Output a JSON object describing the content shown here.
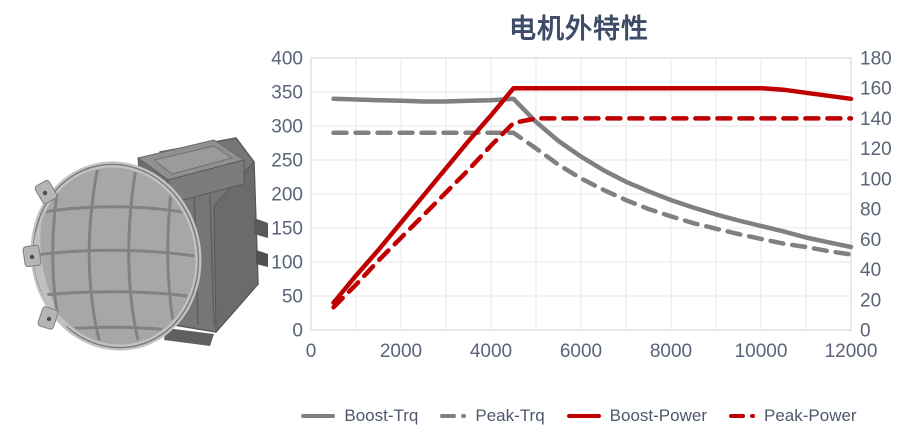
{
  "figure": {
    "alt": "grayscale 3D render of an electric drive motor with inverter housing"
  },
  "theme": {
    "background": "#FFFFFF",
    "accent_red": "#C00000",
    "accent_gray": "#808080",
    "title_color": "#3E4C69",
    "tick_label_color": "#5A6377",
    "legend_text_color": "#4E586B",
    "gridline_color": "#E4E7EA",
    "plot_border_color": "#D7DBDF"
  },
  "chart_data": {
    "type": "line",
    "title": "电机外特性",
    "grid": true,
    "legend": {
      "position": "bottom",
      "items": [
        "Boost-Trq",
        "Peak-Trq",
        "Boost-Power",
        "Peak-Power"
      ]
    },
    "x_axis": {
      "min": 0,
      "max": 12000,
      "tick_step": 2000,
      "grid_step": 1000,
      "tick_labels": [
        "0",
        "2000",
        "4000",
        "6000",
        "8000",
        "10000",
        "12000"
      ]
    },
    "y_axis_left": {
      "min": 0,
      "max": 400,
      "tick_step": 50,
      "tick_labels": [
        "0",
        "50",
        "100",
        "150",
        "200",
        "250",
        "300",
        "350",
        "400"
      ]
    },
    "y_axis_right": {
      "min": 0,
      "max": 180,
      "tick_step": 20,
      "tick_labels": [
        "0",
        "20",
        "40",
        "60",
        "80",
        "100",
        "120",
        "140",
        "160",
        "180"
      ]
    },
    "x": [
      500,
      1000,
      1500,
      2000,
      2500,
      3000,
      3500,
      4000,
      4500,
      5000,
      5500,
      6000,
      6500,
      7000,
      7500,
      8000,
      8500,
      9000,
      9500,
      10000,
      10500,
      11000,
      11500,
      12000
    ],
    "series": [
      {
        "name": "Boost-Trq",
        "axis": "left",
        "color": "#808080",
        "style": "solid",
        "values": [
          340,
          339,
          338,
          337,
          336,
          336,
          337,
          338,
          340,
          306,
          278,
          255,
          235,
          218,
          204,
          191,
          180,
          170,
          161,
          153,
          145,
          136,
          129,
          122
        ]
      },
      {
        "name": "Peak-Trq",
        "axis": "left",
        "color": "#808080",
        "style": "dashed",
        "values": [
          290,
          290,
          290,
          290,
          290,
          290,
          290,
          290,
          290,
          267,
          243,
          223,
          206,
          191,
          178,
          167,
          157,
          149,
          141,
          134,
          127,
          122,
          116,
          111
        ]
      },
      {
        "name": "Boost-Power",
        "axis": "right",
        "color": "#C00000",
        "style": "solid",
        "values": [
          18,
          36,
          53,
          71,
          89,
          107,
          125,
          142,
          160,
          160,
          160,
          160,
          160,
          160,
          160,
          160,
          160,
          160,
          160,
          160,
          159,
          157,
          155,
          153
        ]
      },
      {
        "name": "Peak-Power",
        "axis": "right",
        "color": "#C00000",
        "style": "dashed",
        "values": [
          15,
          30,
          46,
          61,
          76,
          91,
          106,
          122,
          137,
          140,
          140,
          140,
          140,
          140,
          140,
          140,
          140,
          140,
          140,
          140,
          140,
          140,
          140,
          140
        ]
      }
    ]
  }
}
